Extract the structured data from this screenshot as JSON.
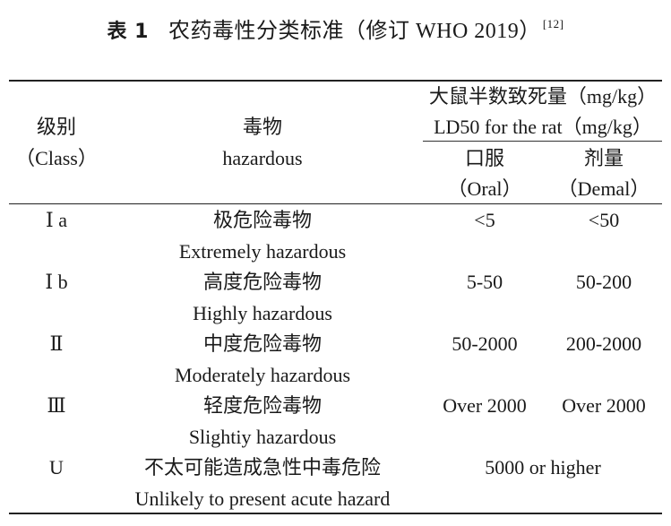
{
  "caption": {
    "label": "表 1",
    "title": "农药毒性分类标准（修订 WHO 2019）",
    "ref": "[12]"
  },
  "header": {
    "class_cn": "级别",
    "class_en": "（Class）",
    "hazard_cn": "毒物",
    "hazard_en": "hazardous",
    "ld50_cn": "大鼠半数致死量（mg/kg）",
    "ld50_en": "LD50 for the rat（mg/kg）",
    "oral_cn": "口服",
    "oral_en": "（Oral）",
    "dermal_cn": "剂量",
    "dermal_en": "（Demal）"
  },
  "rows": [
    {
      "class": "Ⅰ a",
      "name_cn": "极危险毒物",
      "name_en": "Extremely hazardous",
      "oral": "<5",
      "dermal": "<50"
    },
    {
      "class": "Ⅰ b",
      "name_cn": "高度危险毒物",
      "name_en": "Highly hazardous",
      "oral": "5-50",
      "dermal": "50-200"
    },
    {
      "class": "Ⅱ",
      "name_cn": "中度危险毒物",
      "name_en": "Moderately hazardous",
      "oral": "50-2000",
      "dermal": "200-2000"
    },
    {
      "class": "Ⅲ",
      "name_cn": "轻度危险毒物",
      "name_en": "Slightiy hazardous",
      "oral": "Over 2000",
      "dermal": "Over 2000"
    },
    {
      "class": "U",
      "name_cn": "不太可能造成急性中毒危险",
      "name_en": "Unlikely to present acute hazard",
      "combined": "5000 or higher"
    }
  ]
}
